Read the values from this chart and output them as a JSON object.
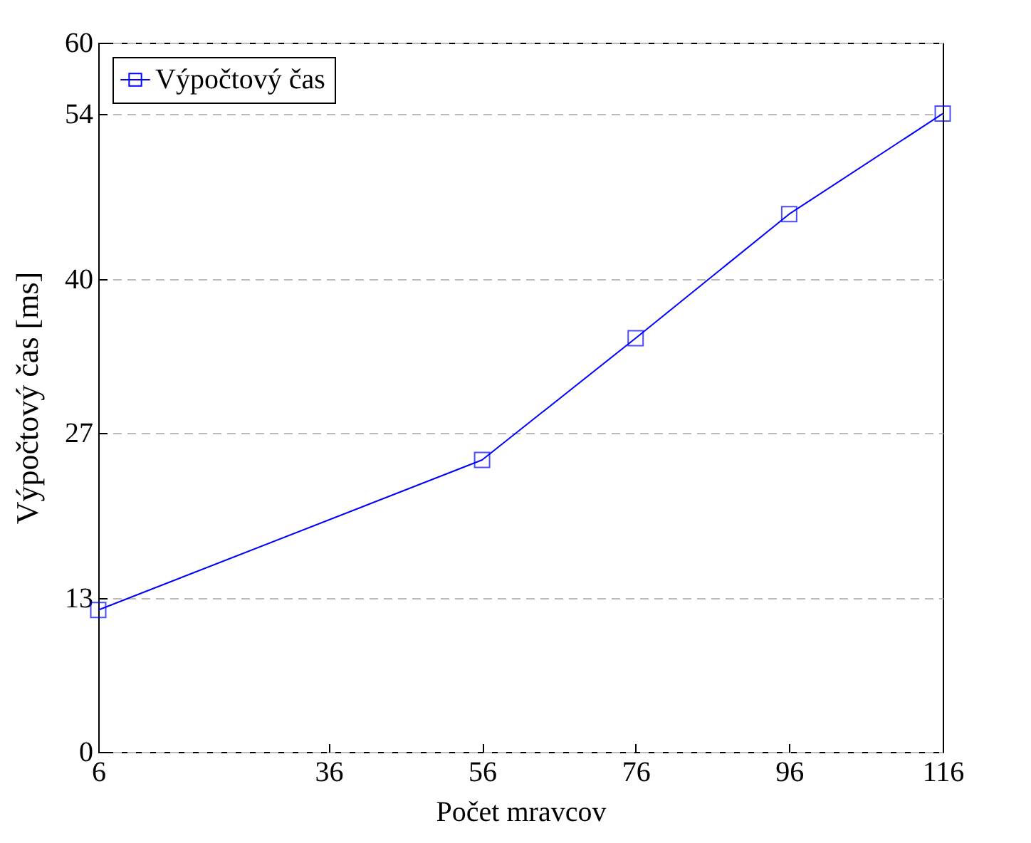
{
  "chart_data": {
    "type": "line",
    "xlabel": "Počet mravcov",
    "ylabel": "Výpočtový čas [ms]",
    "x": [
      6,
      56,
      76,
      96,
      116
    ],
    "series": [
      {
        "name": "Výpočtový čas",
        "color": "#0000ff",
        "values": [
          12,
          24.7,
          35,
          45.5,
          54
        ]
      }
    ],
    "xlim": [
      6,
      116
    ],
    "xticks": [
      6,
      36,
      56,
      76,
      96,
      116
    ],
    "ylim": [
      0,
      60
    ],
    "yticks": [
      0,
      13,
      27,
      40,
      54,
      60
    ],
    "grid": "y",
    "legend": "top left",
    "marker": "square",
    "line_style": "solid"
  }
}
